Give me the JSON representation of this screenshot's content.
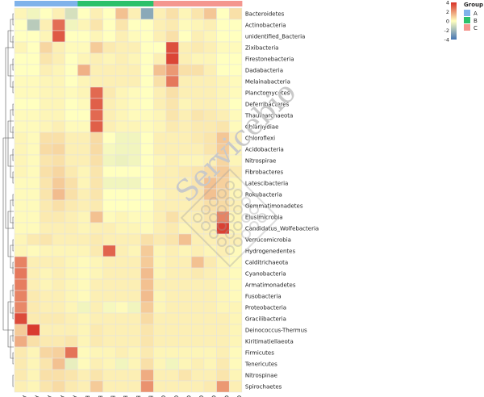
{
  "chart_data": {
    "type": "heatmap",
    "columns": [
      "A1",
      "A2",
      "A3",
      "A4",
      "A5",
      "B1",
      "B2",
      "B3",
      "B4",
      "B5",
      "B6",
      "C1",
      "C2",
      "C3",
      "C4",
      "C5",
      "C6",
      "C7"
    ],
    "column_groups": [
      "A",
      "A",
      "A",
      "A",
      "A",
      "B",
      "B",
      "B",
      "B",
      "B",
      "B",
      "C",
      "C",
      "C",
      "C",
      "C",
      "C",
      "C"
    ],
    "rows": [
      "Bacteroidetes",
      "Actinobacteria",
      "unidentified_Bacteria",
      "Zixibacteria",
      "Firestonebacteria",
      "Dadabacteria",
      "Melainabacteria",
      "Planctomycetes",
      "Deferribacteres",
      "Thaumarchaeota",
      "Chlamydiae",
      "Chloroflexi",
      "Acidobacteria",
      "Nitrospirae",
      "Fibrobacteres",
      "Latescibacteria",
      "Rokubacteria",
      "Gemmatimonadetes",
      "Elusimicrobia",
      "Candidatus_Wolfebacteria",
      "Verrucomicrobia",
      "Hydrogenedentes",
      "Calditrichaeota",
      "Cyanobacteria",
      "Armatimonadetes",
      "Fusobacteria",
      "Proteobacteria",
      "Gracilibacteria",
      "Deinococcus-Thermus",
      "Kiritimatiellaeota",
      "Firmicutes",
      "Tenericutes",
      "Nitrospinae",
      "Spirochaetes"
    ],
    "values": [
      [
        0.2,
        -0.3,
        0.0,
        0.3,
        -0.9,
        0.0,
        0.3,
        0.0,
        1.2,
        0.3,
        -2.5,
        0.3,
        0.6,
        0.2,
        0.5,
        1.1,
        0.0,
        0.6
      ],
      [
        0.0,
        -1.5,
        0.3,
        2.8,
        -0.3,
        0.2,
        0.5,
        0.0,
        0.5,
        0.0,
        0.0,
        0.3,
        0.4,
        0.1,
        0.2,
        0.3,
        0.0,
        0.0
      ],
      [
        0.0,
        0.0,
        0.2,
        3.2,
        0.0,
        0.0,
        0.2,
        0.0,
        0.3,
        0.1,
        0.0,
        0.3,
        0.6,
        0.0,
        0.3,
        0.2,
        0.0,
        0.0
      ],
      [
        0.2,
        0.0,
        0.8,
        0.3,
        0.1,
        0.1,
        1.0,
        0.4,
        0.3,
        0.3,
        0.0,
        0.0,
        3.4,
        0.3,
        0.4,
        0.3,
        0.1,
        0.1
      ],
      [
        0.0,
        0.0,
        0.5,
        0.3,
        0.0,
        0.2,
        0.3,
        0.2,
        0.3,
        0.2,
        0.0,
        0.3,
        3.6,
        0.3,
        0.2,
        0.2,
        0.0,
        0.0
      ],
      [
        0.0,
        0.0,
        0.3,
        0.2,
        0.0,
        1.5,
        0.3,
        0.3,
        0.3,
        0.3,
        0.0,
        1.2,
        2.0,
        0.6,
        0.6,
        0.3,
        0.0,
        0.0
      ],
      [
        0.1,
        0.1,
        0.2,
        0.2,
        0.0,
        0.2,
        0.3,
        0.3,
        0.3,
        0.3,
        0.0,
        0.6,
        2.6,
        0.3,
        0.3,
        0.3,
        0.2,
        0.1
      ],
      [
        0.1,
        0.1,
        0.2,
        0.2,
        0.1,
        0.2,
        2.9,
        0.4,
        0.2,
        0.1,
        0.0,
        0.3,
        0.6,
        0.3,
        0.3,
        0.3,
        0.2,
        0.1
      ],
      [
        0.0,
        0.0,
        0.2,
        0.2,
        0.0,
        0.1,
        3.1,
        0.3,
        0.2,
        0.1,
        0.0,
        0.3,
        0.5,
        0.2,
        0.3,
        0.3,
        0.2,
        0.0
      ],
      [
        0.1,
        0.1,
        0.2,
        0.2,
        0.0,
        0.0,
        2.9,
        0.3,
        0.2,
        0.1,
        0.1,
        0.2,
        0.5,
        0.3,
        0.5,
        0.4,
        0.3,
        0.1
      ],
      [
        0.1,
        0.1,
        0.2,
        0.3,
        0.1,
        0.1,
        3.1,
        0.3,
        0.2,
        0.2,
        0.1,
        0.2,
        0.4,
        0.3,
        0.4,
        0.4,
        0.5,
        0.1
      ],
      [
        0.2,
        0.1,
        0.6,
        0.6,
        0.3,
        0.3,
        0.7,
        0.0,
        -0.3,
        -0.3,
        0.0,
        0.3,
        0.3,
        0.3,
        0.4,
        0.5,
        1.1,
        0.3
      ],
      [
        0.2,
        0.1,
        0.7,
        0.8,
        0.3,
        0.3,
        0.7,
        -0.2,
        -0.3,
        -0.3,
        0.0,
        0.3,
        0.3,
        0.3,
        0.3,
        0.5,
        1.0,
        0.2
      ],
      [
        0.2,
        0.1,
        0.5,
        0.6,
        0.3,
        0.3,
        0.6,
        -0.3,
        -0.4,
        -0.3,
        0.0,
        0.2,
        0.3,
        0.2,
        0.2,
        0.3,
        0.8,
        0.2
      ],
      [
        0.2,
        0.1,
        0.6,
        0.8,
        0.4,
        0.2,
        0.5,
        0.0,
        0.0,
        0.0,
        0.0,
        0.3,
        0.3,
        0.4,
        0.5,
        0.7,
        1.0,
        0.4
      ],
      [
        0.1,
        0.1,
        0.5,
        1.0,
        0.6,
        0.2,
        0.5,
        -0.3,
        -0.3,
        -0.3,
        0.0,
        0.3,
        0.3,
        0.3,
        0.5,
        1.2,
        0.9,
        0.2
      ],
      [
        0.1,
        0.1,
        0.5,
        1.3,
        0.6,
        0.3,
        0.5,
        0.0,
        0.0,
        0.0,
        0.0,
        0.2,
        0.3,
        0.3,
        0.5,
        1.2,
        0.8,
        0.2
      ],
      [
        0.1,
        0.1,
        0.4,
        0.6,
        0.4,
        0.3,
        0.4,
        0.0,
        0.0,
        0.0,
        0.0,
        0.3,
        0.3,
        0.3,
        0.4,
        0.6,
        0.7,
        0.3
      ],
      [
        0.1,
        0.1,
        0.4,
        0.4,
        0.3,
        0.2,
        1.2,
        0.1,
        0.2,
        0.1,
        0.1,
        0.3,
        0.6,
        0.3,
        0.3,
        0.5,
        2.4,
        0.2
      ],
      [
        0.1,
        0.1,
        0.3,
        0.3,
        0.3,
        0.2,
        0.3,
        0.3,
        0.2,
        0.2,
        0.1,
        0.3,
        0.4,
        0.2,
        0.3,
        0.3,
        3.7,
        0.2
      ],
      [
        0.2,
        0.4,
        0.5,
        0.3,
        0.3,
        0.3,
        0.4,
        0.3,
        0.3,
        0.3,
        0.6,
        0.4,
        0.5,
        1.2,
        0.3,
        0.3,
        0.4,
        0.3
      ],
      [
        0.2,
        0.1,
        0.2,
        0.2,
        0.2,
        0.2,
        0.4,
        3.0,
        0.3,
        0.2,
        1.0,
        0.2,
        0.3,
        0.2,
        0.3,
        0.2,
        0.3,
        0.1
      ],
      [
        2.4,
        0.3,
        0.3,
        0.3,
        0.2,
        0.1,
        0.2,
        0.3,
        0.3,
        0.3,
        1.0,
        0.2,
        0.3,
        0.3,
        1.2,
        0.4,
        0.2,
        0.1
      ],
      [
        2.6,
        0.3,
        0.2,
        0.3,
        0.2,
        0.1,
        0.2,
        0.3,
        0.3,
        0.3,
        1.3,
        0.2,
        0.3,
        0.3,
        0.4,
        0.3,
        0.2,
        0.1
      ],
      [
        2.5,
        0.3,
        0.2,
        0.3,
        0.2,
        0.1,
        0.3,
        0.3,
        0.3,
        0.3,
        1.2,
        0.3,
        0.3,
        0.3,
        0.3,
        0.3,
        0.2,
        0.1
      ],
      [
        2.4,
        0.4,
        0.3,
        0.3,
        0.2,
        0.1,
        0.3,
        0.3,
        0.3,
        0.3,
        1.3,
        0.2,
        0.3,
        0.3,
        0.3,
        0.3,
        0.2,
        0.1
      ],
      [
        2.3,
        0.4,
        0.3,
        0.3,
        0.2,
        -0.3,
        0.3,
        -0.2,
        0.1,
        -0.3,
        1.0,
        0.2,
        0.3,
        0.3,
        0.3,
        0.3,
        0.2,
        0.2
      ],
      [
        3.5,
        0.4,
        0.4,
        0.4,
        0.3,
        0.2,
        0.3,
        0.3,
        0.3,
        0.3,
        0.7,
        0.3,
        0.3,
        0.3,
        0.3,
        0.3,
        0.3,
        0.2
      ],
      [
        1.0,
        3.8,
        0.3,
        0.3,
        0.3,
        0.2,
        0.4,
        0.3,
        0.3,
        0.3,
        0.5,
        0.3,
        0.3,
        0.3,
        0.3,
        0.3,
        0.3,
        0.2
      ],
      [
        1.6,
        0.6,
        0.4,
        0.4,
        0.5,
        0.2,
        0.4,
        0.3,
        0.3,
        0.3,
        0.5,
        0.3,
        0.3,
        0.3,
        0.3,
        0.3,
        0.3,
        0.2
      ],
      [
        0.4,
        0.2,
        0.8,
        0.9,
        2.7,
        0.1,
        0.2,
        0.2,
        0.3,
        0.2,
        0.4,
        0.2,
        0.2,
        0.2,
        0.2,
        0.2,
        0.3,
        0.1
      ],
      [
        0.4,
        0.2,
        0.5,
        1.2,
        -0.5,
        0.1,
        0.3,
        0.2,
        -0.3,
        0.2,
        0.6,
        0.2,
        -0.3,
        0.2,
        0.3,
        0.2,
        0.4,
        0.1
      ],
      [
        0.4,
        0.2,
        0.6,
        0.6,
        0.5,
        0.3,
        0.5,
        0.3,
        0.3,
        0.3,
        1.6,
        0.3,
        0.3,
        0.5,
        0.3,
        0.3,
        0.5,
        0.2
      ],
      [
        0.3,
        0.2,
        0.5,
        0.7,
        0.4,
        0.3,
        1.0,
        0.3,
        0.3,
        0.3,
        2.1,
        0.3,
        0.3,
        0.3,
        0.3,
        0.4,
        2.0,
        0.3
      ]
    ],
    "color_scale": {
      "min": -4,
      "max": 4,
      "ticks": [
        4,
        2,
        0,
        -2,
        -4
      ],
      "colors": [
        "#4575b4",
        "#ffffbf",
        "#d73027"
      ]
    },
    "group_legend": {
      "title": "Group",
      "items": [
        {
          "label": "A",
          "color": "#7fb2ea"
        },
        {
          "label": "B",
          "color": "#2bc06a"
        },
        {
          "label": "C",
          "color": "#f4968f"
        }
      ]
    }
  },
  "watermark": "Servicebio"
}
